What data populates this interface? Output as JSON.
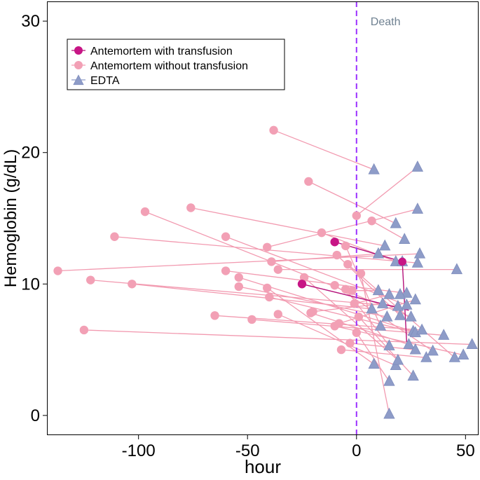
{
  "chart_data": {
    "type": "scatter",
    "title": "",
    "xlabel": "hour",
    "ylabel": "Hemoglobin (g/dL)",
    "xlim": [
      -142,
      56
    ],
    "ylim": [
      -1.5,
      31.5
    ],
    "x_ticks": [
      -100,
      -50,
      0,
      50
    ],
    "y_ticks": [
      0,
      10,
      20,
      30
    ],
    "x_tick_labels": [
      "-100",
      "-50",
      "0",
      "50"
    ],
    "y_tick_labels": [
      "0",
      "10",
      "20",
      "30"
    ],
    "grid": false,
    "legend_position": "top-left",
    "reference_line": {
      "x": 0,
      "label": "Death",
      "color": "#9b30ff",
      "style": "dashed"
    },
    "legend": [
      {
        "key": "transfused",
        "label": "Antemortem with transfusion",
        "marker": "circle",
        "color": "#c71585"
      },
      {
        "key": "untransfused",
        "label": "Antemortem without transfusion",
        "marker": "circle",
        "color": "#f2a0b5"
      },
      {
        "key": "edta",
        "label": "EDTA",
        "marker": "triangle",
        "color": "#8e9cc8"
      }
    ],
    "colors": {
      "transfused": "#c71585",
      "untransfused": "#f2a0b5",
      "pair_line": "#f29ab0",
      "transfused_line": "#b5127a",
      "edta": "#8e9cc8",
      "edta_stroke": "#7f8dbd",
      "death_label": "#6f8191"
    },
    "pairs": [
      {
        "ante": [
          -38,
          21.7
        ],
        "edta": [
          8,
          18.7
        ],
        "transfusion": false
      },
      {
        "ante": [
          -22,
          17.8
        ],
        "edta": [
          18,
          14.6
        ],
        "transfusion": false
      },
      {
        "ante": [
          -76,
          15.8
        ],
        "edta": [
          13,
          12.9
        ],
        "transfusion": false
      },
      {
        "ante": [
          -97,
          15.5
        ],
        "edta": [
          25,
          7.5
        ],
        "transfusion": false
      },
      {
        "ante": [
          -111,
          13.6
        ],
        "edta": [
          28,
          11.6
        ],
        "transfusion": false
      },
      {
        "ante": [
          -16,
          13.9
        ],
        "edta": [
          18,
          11.7
        ],
        "transfusion": false
      },
      {
        "ante": [
          -10,
          13.2
        ],
        "edta": [
          21,
          11.7
        ],
        "transfusion": true
      },
      {
        "ante": [
          -60,
          13.6
        ],
        "edta": [
          23,
          8.4
        ],
        "transfusion": false
      },
      {
        "ante": [
          -41,
          12.8
        ],
        "edta": [
          28,
          15.7
        ],
        "transfusion": false
      },
      {
        "ante": [
          -137,
          11.0
        ],
        "edta": [
          29,
          12.3
        ],
        "transfusion": false
      },
      {
        "ante": [
          -9,
          12.2
        ],
        "edta": [
          20,
          7.6
        ],
        "transfusion": false
      },
      {
        "ante": [
          -39,
          11.7
        ],
        "edta": [
          10,
          12.3
        ],
        "transfusion": false
      },
      {
        "ante": [
          -36,
          11.1
        ],
        "edta": [
          46,
          11.1
        ],
        "transfusion": false
      },
      {
        "ante": [
          -60,
          11.0
        ],
        "edta": [
          23,
          9.3
        ],
        "transfusion": false
      },
      {
        "ante": [
          -54,
          10.5
        ],
        "edta": [
          26,
          6.4
        ],
        "transfusion": false
      },
      {
        "ante": [
          -122,
          10.3
        ],
        "edta": [
          19,
          8.3
        ],
        "transfusion": false
      },
      {
        "ante": [
          -103,
          10.0
        ],
        "edta": [
          7,
          8.1
        ],
        "transfusion": false
      },
      {
        "ante": [
          -25,
          10.0
        ],
        "edta": [
          20,
          9.2
        ],
        "transfusion": true
      },
      {
        "ante": [
          -54,
          9.8
        ],
        "edta": [
          14,
          7.5
        ],
        "transfusion": false
      },
      {
        "ante": [
          -41,
          9.7
        ],
        "edta": [
          8,
          3.9
        ],
        "transfusion": false
      },
      {
        "ante": [
          -40,
          9.0
        ],
        "edta": [
          27,
          6.3
        ],
        "transfusion": false
      },
      {
        "ante": [
          -36,
          7.7
        ],
        "edta": [
          18,
          3.8
        ],
        "transfusion": false
      },
      {
        "ante": [
          -65,
          7.6
        ],
        "edta": [
          30,
          6.5
        ],
        "transfusion": false
      },
      {
        "ante": [
          -48,
          7.3
        ],
        "edta": [
          40,
          6.1
        ],
        "transfusion": false
      },
      {
        "ante": [
          -21,
          7.8
        ],
        "edta": [
          24,
          5.4
        ],
        "transfusion": false
      },
      {
        "ante": [
          -10,
          9.9
        ],
        "edta": [
          35,
          4.9
        ],
        "transfusion": false
      },
      {
        "ante": [
          -125,
          6.5
        ],
        "edta": [
          53,
          5.4
        ],
        "transfusion": false
      },
      {
        "ante": [
          -10,
          6.8
        ],
        "edta": [
          49,
          4.6
        ],
        "transfusion": false
      },
      {
        "ante": [
          -4,
          11.5
        ],
        "edta": [
          45,
          4.4
        ],
        "transfusion": false
      },
      {
        "ante": [
          -7,
          5.0
        ],
        "edta": [
          32,
          4.4
        ],
        "transfusion": false
      },
      {
        "ante": [
          -3,
          5.5
        ],
        "edta": [
          27,
          5.0
        ],
        "transfusion": false
      },
      {
        "ante": [
          0,
          6.3
        ],
        "edta": [
          15,
          2.6
        ],
        "transfusion": false
      },
      {
        "ante": [
          1,
          7.5
        ],
        "edta": [
          26,
          3.0
        ],
        "transfusion": false
      },
      {
        "ante": [
          2,
          10.8
        ],
        "edta": [
          15,
          0.1
        ],
        "transfusion": false
      },
      {
        "ante": [
          -5,
          12.9
        ],
        "edta": [
          11,
          6.8
        ],
        "transfusion": false
      },
      {
        "ante": [
          -5,
          9.6
        ],
        "edta": [
          15,
          5.3
        ],
        "transfusion": false
      },
      {
        "ante": [
          -24,
          10.5
        ],
        "edta": [
          19,
          4.2
        ],
        "transfusion": false
      },
      {
        "ante": [
          0,
          15.2
        ],
        "edta": [
          28,
          18.9
        ],
        "transfusion": false
      },
      {
        "ante": [
          7,
          14.8
        ],
        "edta": [
          22,
          13.4
        ],
        "transfusion": false
      },
      {
        "ante": [
          -2,
          9.5
        ],
        "edta": [
          10,
          9.5
        ],
        "transfusion": false
      },
      {
        "ante": [
          -20,
          7.9
        ],
        "edta": [
          12,
          8.5
        ],
        "transfusion": false
      },
      {
        "ante": [
          -8,
          7.0
        ],
        "edta": [
          27,
          8.8
        ],
        "transfusion": false
      },
      {
        "ante": [
          -1,
          8.5
        ],
        "edta": [
          15,
          9.2
        ],
        "transfusion": false
      }
    ],
    "transfusion_edges": [
      {
        "from": [
          -10,
          13.2
        ],
        "to": [
          21,
          11.7
        ]
      },
      {
        "from": [
          21,
          11.7
        ],
        "to": [
          23,
          5.6
        ]
      },
      {
        "from": [
          -25,
          10.0
        ],
        "to": [
          24,
          8.0
        ]
      }
    ]
  }
}
